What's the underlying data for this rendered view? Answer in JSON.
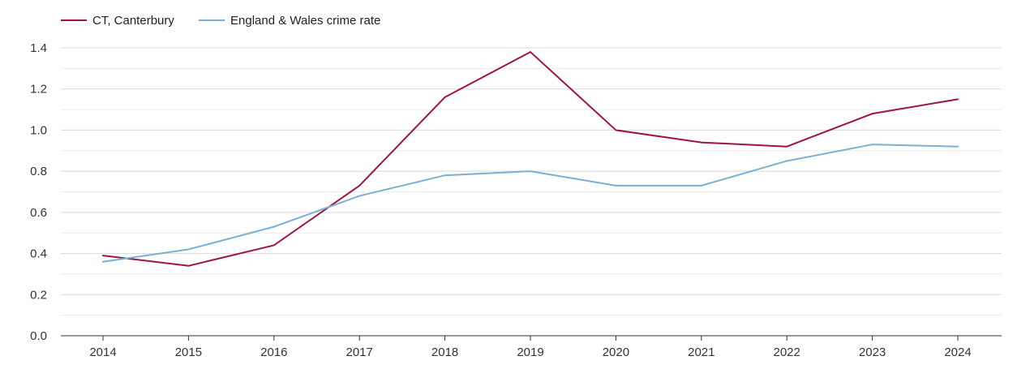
{
  "chart_data": {
    "type": "line",
    "title": "",
    "xlabel": "",
    "ylabel": "",
    "x": [
      "2014",
      "2015",
      "2016",
      "2017",
      "2018",
      "2019",
      "2020",
      "2021",
      "2022",
      "2023",
      "2024"
    ],
    "ylim": [
      0,
      1.4
    ],
    "y_ticks": [
      "0.0",
      "0.2",
      "0.4",
      "0.6",
      "0.8",
      "1.0",
      "1.2",
      "1.4"
    ],
    "grid": true,
    "legend_position": "top-left",
    "series": [
      {
        "name": "CT, Canterbury",
        "color": "#a0153e",
        "values": [
          0.39,
          0.34,
          0.44,
          0.73,
          1.16,
          1.38,
          1.0,
          0.94,
          0.92,
          1.08,
          1.15
        ]
      },
      {
        "name": "England & Wales crime rate",
        "color": "#7bafd4",
        "values": [
          0.36,
          0.42,
          0.53,
          0.68,
          0.78,
          0.8,
          0.73,
          0.73,
          0.85,
          0.93,
          0.92
        ]
      }
    ]
  }
}
